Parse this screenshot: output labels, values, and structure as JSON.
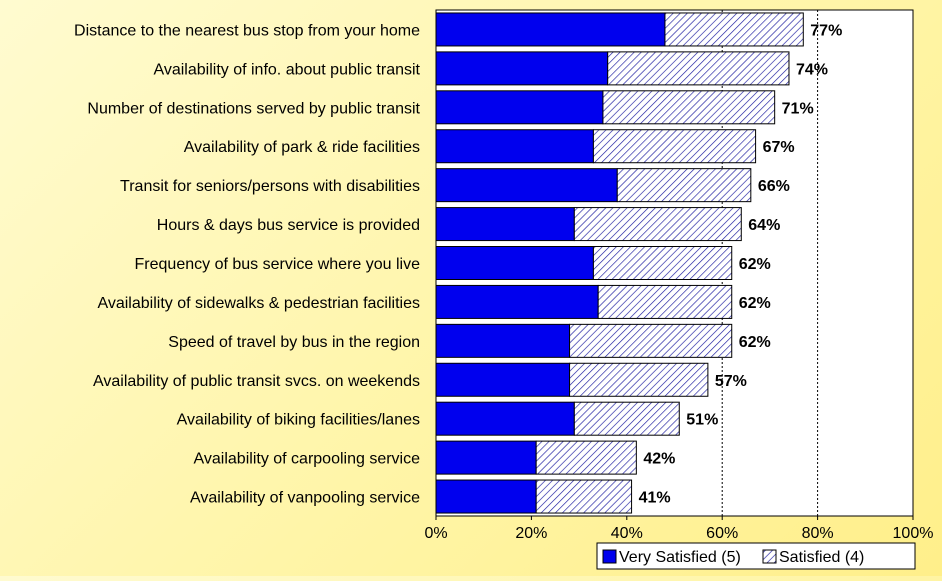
{
  "chart_data": {
    "type": "bar",
    "orientation": "horizontal",
    "stacked": true,
    "categories": [
      "Distance to the nearest bus stop from your home",
      "Availability of info. about public transit",
      "Number of destinations served by public transit",
      "Availability of park & ride facilities",
      "Transit for seniors/persons with disabilities",
      "Hours & days bus service is provided",
      "Frequency of bus service where you live",
      "Availability of sidewalks & pedestrian facilities",
      "Speed of travel by bus in the region",
      "Availability of public transit svcs. on weekends",
      "Availability of biking facilities/lanes",
      "Availability of carpooling service",
      "Availability of vanpooling service"
    ],
    "series": [
      {
        "name": "Very Satisfied (5)",
        "color": "#0000ee",
        "pattern": "solid",
        "values": [
          48,
          36,
          35,
          33,
          38,
          29,
          33,
          34,
          28,
          28,
          29,
          21,
          21
        ]
      },
      {
        "name": "Satisfied (4)",
        "color": "#ffffff",
        "pattern": "diagonal-hatch",
        "values": [
          29,
          38,
          36,
          34,
          28,
          35,
          29,
          28,
          34,
          29,
          22,
          21,
          20
        ]
      }
    ],
    "totals": [
      77,
      74,
      71,
      67,
      66,
      64,
      62,
      62,
      62,
      57,
      51,
      42,
      41
    ],
    "total_labels": [
      "77%",
      "74%",
      "71%",
      "67%",
      "66%",
      "64%",
      "62%",
      "62%",
      "62%",
      "57%",
      "51%",
      "42%",
      "41%"
    ],
    "xlim": [
      0,
      100
    ],
    "x_ticks": [
      "0%",
      "20%",
      "40%",
      "60%",
      "80%",
      "100%"
    ],
    "x_tick_values": [
      0,
      20,
      40,
      60,
      80,
      100
    ],
    "gridlines": [
      60,
      80
    ],
    "legend": "bottom-right",
    "plot_background": "#ffffff"
  }
}
